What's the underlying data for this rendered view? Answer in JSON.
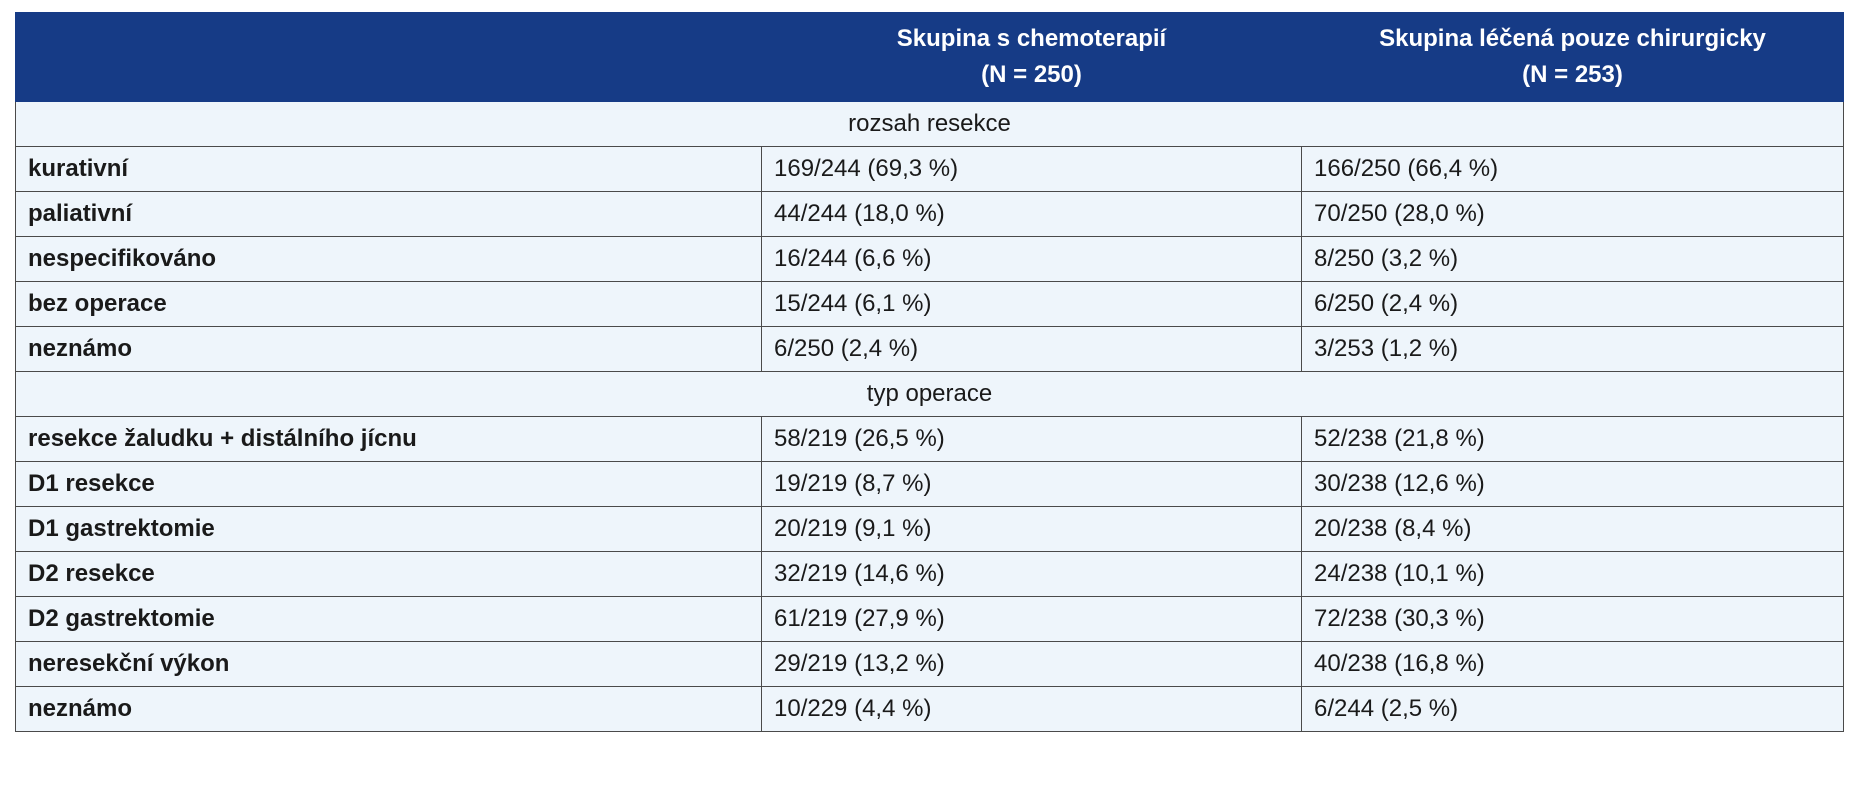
{
  "header": {
    "columns": [
      {
        "line1": "Skupina s chemoterapií",
        "line2": "(N = 250)"
      },
      {
        "line1": "Skupina léčená pouze chirurgicky",
        "line2": "(N = 253)"
      }
    ]
  },
  "sections": [
    {
      "title": "rozsah resekce",
      "rows": [
        [
          "kurativní",
          "169/244 (69,3 %)",
          "166/250 (66,4 %)"
        ],
        [
          "paliativní",
          "44/244 (18,0 %)",
          "70/250 (28,0 %)"
        ],
        [
          "nespecifikováno",
          "16/244 (6,6 %)",
          "8/250 (3,2 %)"
        ],
        [
          "bez operace",
          "15/244 (6,1 %)",
          "6/250 (2,4 %)"
        ],
        [
          "neznámo",
          "6/250 (2,4 %)",
          "3/253 (1,2 %)"
        ]
      ]
    },
    {
      "title": "typ operace",
      "rows": [
        [
          "resekce žaludku + distálního jícnu",
          "58/219 (26,5 %)",
          "52/238 (21,8 %)"
        ],
        [
          "D1 resekce",
          "19/219 (8,7 %)",
          "30/238 (12,6 %)"
        ],
        [
          "D1 gastrektomie",
          "20/219 (9,1 %)",
          "20/238 (8,4 %)"
        ],
        [
          "D2 resekce",
          "32/219 (14,6 %)",
          "24/238 (10,1 %)"
        ],
        [
          "D2 gastrektomie",
          "61/219 (27,9 %)",
          "72/238 (30,3 %)"
        ],
        [
          "neresekční výkon",
          "29/219 (13,2 %)",
          "40/238 (16,8 %)"
        ],
        [
          "neznámo",
          "10/229 (4,4 %)",
          "6/244 (2,5 %)"
        ]
      ]
    }
  ]
}
